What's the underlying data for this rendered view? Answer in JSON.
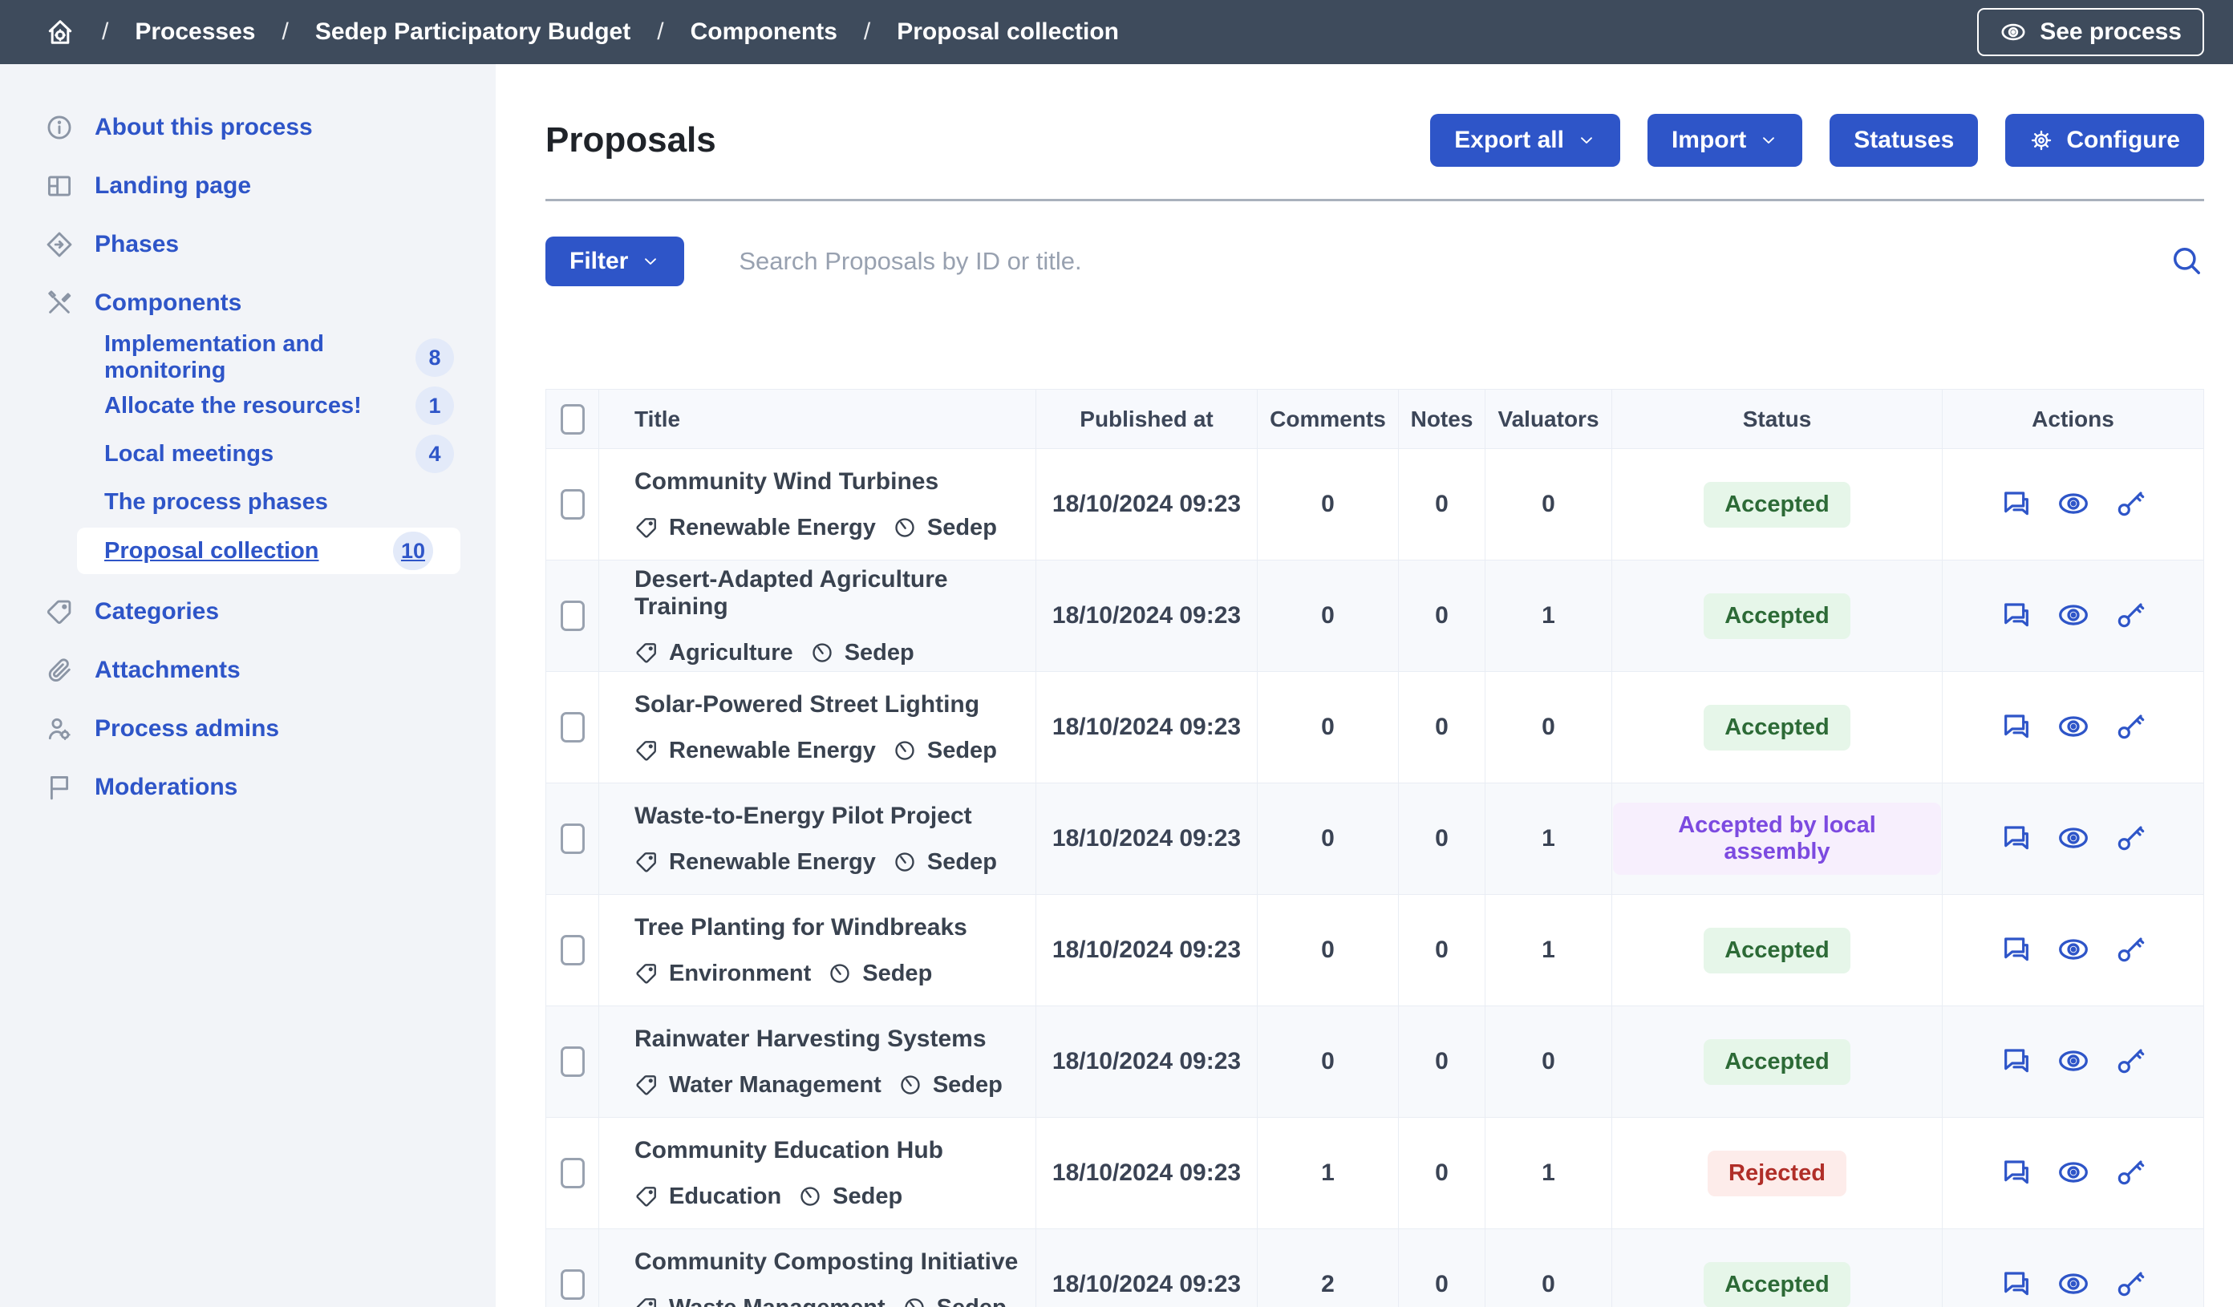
{
  "topbar": {
    "breadcrumb": [
      "Processes",
      "Sedep Participatory Budget",
      "Components",
      "Proposal collection"
    ],
    "see_process_label": "See process"
  },
  "sidebar": {
    "items": [
      {
        "icon": "info-icon",
        "label": "About this process"
      },
      {
        "icon": "landing-icon",
        "label": "Landing page"
      },
      {
        "icon": "phases-icon",
        "label": "Phases"
      },
      {
        "icon": "components-icon",
        "label": "Components",
        "children": [
          {
            "label": "Implementation and monitoring",
            "badge": "8"
          },
          {
            "label": "Allocate the resources!",
            "badge": "1"
          },
          {
            "label": "Local meetings",
            "badge": "4"
          },
          {
            "label": "The process phases"
          },
          {
            "label": "Proposal collection",
            "badge": "10",
            "selected": true
          }
        ]
      },
      {
        "icon": "categories-icon",
        "label": "Categories"
      },
      {
        "icon": "attachments-icon",
        "label": "Attachments"
      },
      {
        "icon": "admins-icon",
        "label": "Process admins"
      },
      {
        "icon": "moderations-icon",
        "label": "Moderations"
      }
    ]
  },
  "main": {
    "title": "Proposals",
    "toolbar": {
      "export_all": "Export all",
      "import": "Import",
      "statuses": "Statuses",
      "configure": "Configure"
    },
    "filter_label": "Filter",
    "search_placeholder": "Search Proposals by ID or title.",
    "table": {
      "columns": [
        "Title",
        "Published at",
        "Comments",
        "Notes",
        "Valuators",
        "Status",
        "Actions"
      ],
      "rows": [
        {
          "title": "Community Wind Turbines",
          "category": "Renewable Energy",
          "scope": "Sedep",
          "published_at": "18/10/2024 09:23",
          "comments": "0",
          "notes": "0",
          "valuators": "0",
          "status": "Accepted",
          "status_type": "success"
        },
        {
          "title": "Desert-Adapted Agriculture Training",
          "category": "Agriculture",
          "scope": "Sedep",
          "published_at": "18/10/2024 09:23",
          "comments": "0",
          "notes": "0",
          "valuators": "1",
          "status": "Accepted",
          "status_type": "success"
        },
        {
          "title": "Solar-Powered Street Lighting",
          "category": "Renewable Energy",
          "scope": "Sedep",
          "published_at": "18/10/2024 09:23",
          "comments": "0",
          "notes": "0",
          "valuators": "0",
          "status": "Accepted",
          "status_type": "success"
        },
        {
          "title": "Waste-to-Energy Pilot Project",
          "category": "Renewable Energy",
          "scope": "Sedep",
          "published_at": "18/10/2024 09:23",
          "comments": "0",
          "notes": "0",
          "valuators": "1",
          "status": "Accepted by local assembly",
          "status_type": "assembly"
        },
        {
          "title": "Tree Planting for Windbreaks",
          "category": "Environment",
          "scope": "Sedep",
          "published_at": "18/10/2024 09:23",
          "comments": "0",
          "notes": "0",
          "valuators": "1",
          "status": "Accepted",
          "status_type": "success"
        },
        {
          "title": "Rainwater Harvesting Systems",
          "category": "Water Management",
          "scope": "Sedep",
          "published_at": "18/10/2024 09:23",
          "comments": "0",
          "notes": "0",
          "valuators": "0",
          "status": "Accepted",
          "status_type": "success"
        },
        {
          "title": "Community Education Hub",
          "category": "Education",
          "scope": "Sedep",
          "published_at": "18/10/2024 09:23",
          "comments": "1",
          "notes": "0",
          "valuators": "1",
          "status": "Rejected",
          "status_type": "rejected"
        },
        {
          "title": "Community Composting Initiative",
          "category": "Waste Management",
          "scope": "Sedep",
          "published_at": "18/10/2024 09:23",
          "comments": "2",
          "notes": "0",
          "valuators": "0",
          "status": "Accepted",
          "status_type": "success"
        }
      ]
    }
  },
  "colors": {
    "primary": "#2e55c8",
    "topbar_bg": "#3e4b5c",
    "sidebar_bg": "#f2f4f8",
    "status_accepted_text": "#2c6a36",
    "status_accepted_bg": "#e6f6e9",
    "status_assembly_text": "#7c4ae0",
    "status_assembly_bg": "#f7effd",
    "status_rejected_text": "#b02e28",
    "status_rejected_bg": "#fdecea"
  }
}
